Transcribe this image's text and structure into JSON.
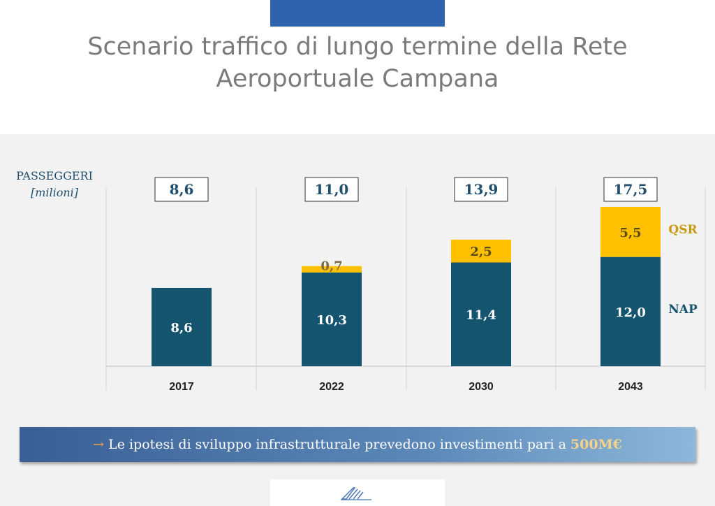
{
  "title": {
    "line1": "Scenario traffico di lungo termine della Rete",
    "line2": "Aeroportuale Campana"
  },
  "unit": {
    "main": "PASSEGGERI",
    "sub": "[milioni]"
  },
  "chart_data": {
    "type": "bar",
    "stacked": true,
    "categories": [
      "2017",
      "2022",
      "2030",
      "2043"
    ],
    "series": [
      {
        "name": "NAP",
        "values": [
          8.6,
          10.3,
          11.4,
          12.0
        ],
        "labels": [
          "8,6",
          "10,3",
          "11,4",
          "12,0"
        ],
        "color": "#14546f"
      },
      {
        "name": "QSR",
        "values": [
          0,
          0.7,
          2.5,
          5.5
        ],
        "labels": [
          "",
          "0,7",
          "2,5",
          "5,5"
        ],
        "color": "#ffc000"
      }
    ],
    "totals": [
      "8,6",
      "11,0",
      "13,9",
      "17,5"
    ],
    "ylim": [
      0,
      17.5
    ],
    "legend_placement": "right",
    "colors": {
      "NAP": "#14546f",
      "QSR": "#ffc000",
      "QSR_label": "#c79a0b",
      "NAP_label": "#14546f"
    }
  },
  "banner": {
    "arrow": "→",
    "text": "Le ipotesi di sviluppo infrastrutturale prevedono investimenti pari a",
    "amount": "500M€"
  }
}
